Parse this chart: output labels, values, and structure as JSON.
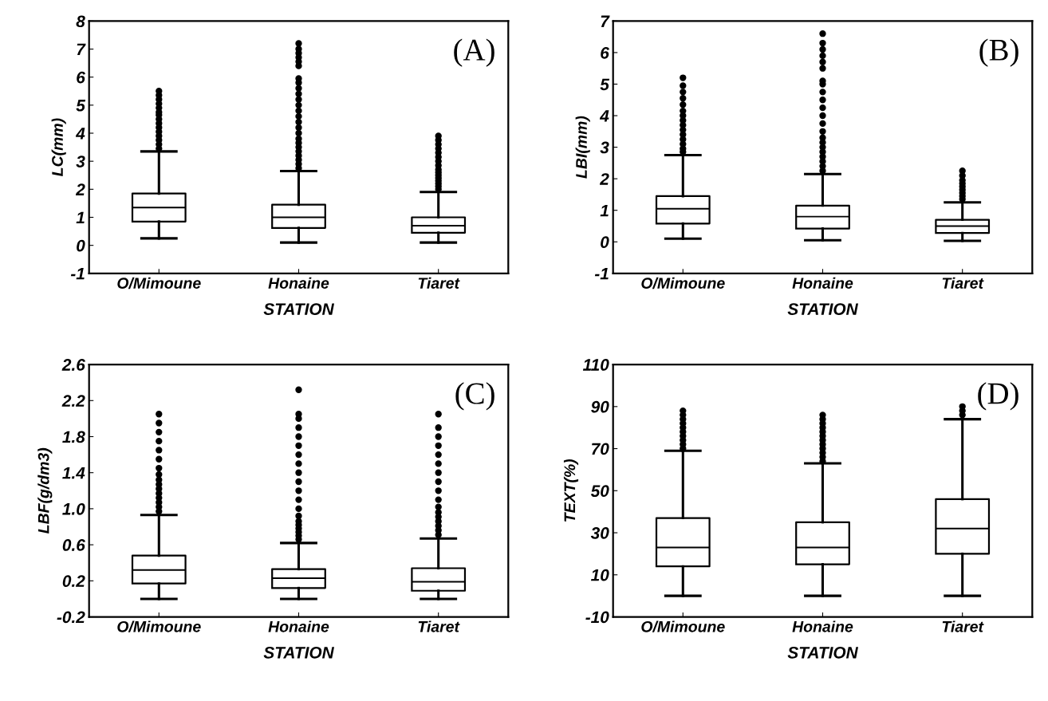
{
  "chart_data": [
    {
      "type": "box",
      "annotations": [
        "(A)"
      ],
      "xlabel": "STATION",
      "ylabel": "LC(mm)",
      "categories": [
        "O/Mimoune",
        "Honaine",
        "Tiaret"
      ],
      "ylim": [
        -1,
        8
      ],
      "yticks": [
        -1,
        0,
        1,
        2,
        3,
        4,
        5,
        6,
        7,
        8
      ],
      "grid": false,
      "boxes": [
        {
          "low": 0.25,
          "q1": 0.85,
          "median": 1.35,
          "q3": 1.85,
          "high": 3.35,
          "outliers": [
            3.45,
            3.6,
            3.75,
            3.9,
            4.05,
            4.2,
            4.35,
            4.5,
            4.65,
            4.75,
            4.9,
            5.05,
            5.2,
            5.35,
            5.5
          ]
        },
        {
          "low": 0.1,
          "q1": 0.62,
          "median": 1.0,
          "q3": 1.45,
          "high": 2.65,
          "outliers": [
            2.75,
            2.9,
            3.05,
            3.2,
            3.35,
            3.5,
            3.65,
            3.8,
            4.0,
            4.2,
            4.4,
            4.6,
            4.8,
            5.0,
            5.2,
            5.4,
            5.6,
            5.8,
            5.95,
            6.4,
            6.55,
            6.7,
            6.85,
            7.0,
            7.2
          ]
        },
        {
          "low": 0.1,
          "q1": 0.45,
          "median": 0.7,
          "q3": 1.0,
          "high": 1.9,
          "outliers": [
            2.0,
            2.1,
            2.2,
            2.3,
            2.4,
            2.5,
            2.6,
            2.7,
            2.85,
            3.0,
            3.15,
            3.3,
            3.45,
            3.6,
            3.75,
            3.9
          ]
        }
      ]
    },
    {
      "type": "box",
      "annotations": [
        "(B)"
      ],
      "xlabel": "STATION",
      "ylabel": "LBI(mm)",
      "categories": [
        "O/Mimoune",
        "Honaine",
        "Tiaret"
      ],
      "ylim": [
        -1,
        7
      ],
      "yticks": [
        -1,
        0,
        1,
        2,
        3,
        4,
        5,
        6,
        7
      ],
      "grid": false,
      "boxes": [
        {
          "low": 0.1,
          "q1": 0.58,
          "median": 1.05,
          "q3": 1.45,
          "high": 2.75,
          "outliers": [
            2.85,
            2.95,
            3.1,
            3.25,
            3.4,
            3.55,
            3.7,
            3.85,
            4.0,
            4.15,
            4.35,
            4.55,
            4.75,
            4.95,
            5.2
          ]
        },
        {
          "low": 0.05,
          "q1": 0.42,
          "median": 0.8,
          "q3": 1.15,
          "high": 2.15,
          "outliers": [
            2.25,
            2.4,
            2.55,
            2.7,
            2.85,
            3.0,
            3.15,
            3.3,
            3.5,
            3.75,
            4.0,
            4.25,
            4.5,
            4.75,
            5.0,
            5.1,
            5.5,
            5.7,
            5.9,
            6.1,
            6.3,
            6.6
          ]
        },
        {
          "low": 0.03,
          "q1": 0.28,
          "median": 0.5,
          "q3": 0.7,
          "high": 1.25,
          "outliers": [
            1.35,
            1.45,
            1.55,
            1.65,
            1.75,
            1.85,
            1.95,
            2.1,
            2.25
          ]
        }
      ]
    },
    {
      "type": "box",
      "annotations": [
        "(C)"
      ],
      "xlabel": "STATION",
      "ylabel": "LBF(g/dm3)",
      "categories": [
        "O/Mimoune",
        "Honaine",
        "Tiaret"
      ],
      "ylim": [
        -0.2,
        2.6
      ],
      "yticks": [
        {
          "value": -0.2,
          "label": "-0.2"
        },
        {
          "value": 0.2,
          "label": "0.2"
        },
        {
          "value": 0.6,
          "label": "0.6"
        },
        {
          "value": 1.0,
          "label": "1.0"
        },
        {
          "value": 1.4,
          "label": "1.4"
        },
        {
          "value": 1.8,
          "label": "1.8"
        },
        {
          "value": 2.2,
          "label": "2.2"
        },
        {
          "value": 2.6,
          "label": "2.6"
        }
      ],
      "grid": false,
      "boxes": [
        {
          "low": 0.0,
          "q1": 0.17,
          "median": 0.32,
          "q3": 0.48,
          "high": 0.93,
          "outliers": [
            0.97,
            1.02,
            1.07,
            1.12,
            1.17,
            1.22,
            1.27,
            1.32,
            1.38,
            1.45,
            1.55,
            1.65,
            1.75,
            1.85,
            1.95,
            2.05
          ]
        },
        {
          "low": 0.0,
          "q1": 0.12,
          "median": 0.23,
          "q3": 0.33,
          "high": 0.62,
          "outliers": [
            0.66,
            0.7,
            0.74,
            0.78,
            0.82,
            0.86,
            0.92,
            1.0,
            1.1,
            1.2,
            1.3,
            1.4,
            1.5,
            1.6,
            1.7,
            1.8,
            1.9,
            2.0,
            2.05,
            2.32
          ]
        },
        {
          "low": 0.0,
          "q1": 0.09,
          "median": 0.19,
          "q3": 0.34,
          "high": 0.67,
          "outliers": [
            0.71,
            0.76,
            0.81,
            0.86,
            0.91,
            0.96,
            1.02,
            1.1,
            1.2,
            1.3,
            1.4,
            1.5,
            1.6,
            1.7,
            1.8,
            1.9,
            2.05
          ]
        }
      ]
    },
    {
      "type": "box",
      "annotations": [
        "(D)"
      ],
      "xlabel": "STATION",
      "ylabel": "TEXT(%)",
      "categories": [
        "O/Mimoune",
        "Honaine",
        "Tiaret"
      ],
      "ylim": [
        -10,
        110
      ],
      "yticks": [
        -10,
        10,
        30,
        50,
        70,
        90,
        110
      ],
      "grid": false,
      "boxes": [
        {
          "low": 0,
          "q1": 14,
          "median": 23,
          "q3": 37,
          "high": 69,
          "outliers": [
            70,
            72,
            74,
            76,
            78,
            80,
            82,
            84,
            86,
            88
          ]
        },
        {
          "low": 0,
          "q1": 15,
          "median": 23,
          "q3": 35,
          "high": 63,
          "outliers": [
            64,
            66,
            68,
            70,
            72,
            74,
            76,
            78,
            80,
            82,
            84,
            86
          ]
        },
        {
          "low": 0,
          "q1": 20,
          "median": 32,
          "q3": 46,
          "high": 84,
          "outliers": [
            86,
            88,
            90
          ]
        }
      ]
    }
  ]
}
